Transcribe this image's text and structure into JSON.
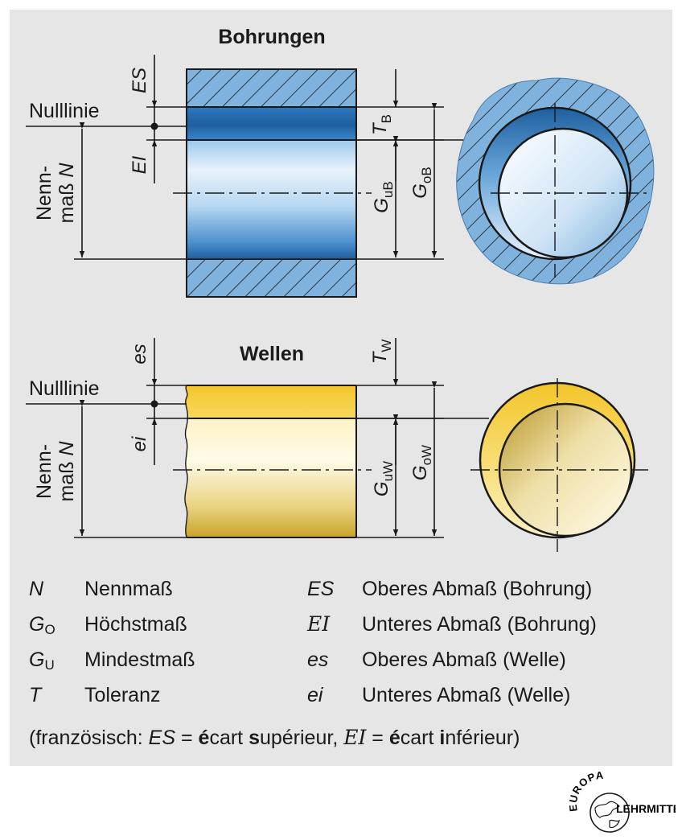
{
  "titles": {
    "holes": "Bohrungen",
    "shafts": "Wellen"
  },
  "labels": {
    "zero_line": "Nulllinie",
    "nominal_line1": "Nenn-",
    "nominal_line2": "maß",
    "nominal_symbol": "N",
    "ES": "ES",
    "EI": "EI",
    "es": "es",
    "ei": "ei",
    "T": "T",
    "G": "G",
    "sub_B": "B",
    "sub_W": "W",
    "sub_uB": "uB",
    "sub_oB": "oB",
    "sub_uW": "uW",
    "sub_oW": "oW"
  },
  "legend": {
    "left": [
      {
        "symbol": "N",
        "sub": "",
        "text": "Nennmaß"
      },
      {
        "symbol": "G",
        "sub": "O",
        "text": "Höchstmaß"
      },
      {
        "symbol": "G",
        "sub": "U",
        "text": "Mindestmaß"
      },
      {
        "symbol": "T",
        "sub": "",
        "text": "Toleranz"
      }
    ],
    "right": [
      {
        "symbol": "ES",
        "text": "Oberes Abmaß (Bohrung)"
      },
      {
        "symbol": "EI",
        "text": "Unteres Abmaß (Bohrung)"
      },
      {
        "symbol": "es",
        "text": "Oberes Abmaß (Welle)"
      },
      {
        "symbol": "ei",
        "text": "Unteres Abmaß (Welle)"
      }
    ]
  },
  "footnote": {
    "prefix": "(französisch: ",
    "es_symbol": "ES",
    "eq1": " = ",
    "e1": "é",
    "w1": "cart ",
    "s1": "s",
    "w2": "upérieur, ",
    "ei_symbol": "EI",
    "eq2": " = ",
    "e2": "é",
    "w3": "cart ",
    "i2": "i",
    "w4": "nférieur)"
  },
  "logo": {
    "top": "EUROPA",
    "bottom": "LEHRMITTEL"
  },
  "colors": {
    "panel": "#e6e6e6",
    "hatch_blue": "#7fb2dc",
    "bore_dark": "#1e5f9f",
    "bore_light": "#e8f2fb",
    "shaft_dark": "#c9a327",
    "shaft_light": "#fffbe8",
    "shaft_bright": "#f3c52a"
  }
}
